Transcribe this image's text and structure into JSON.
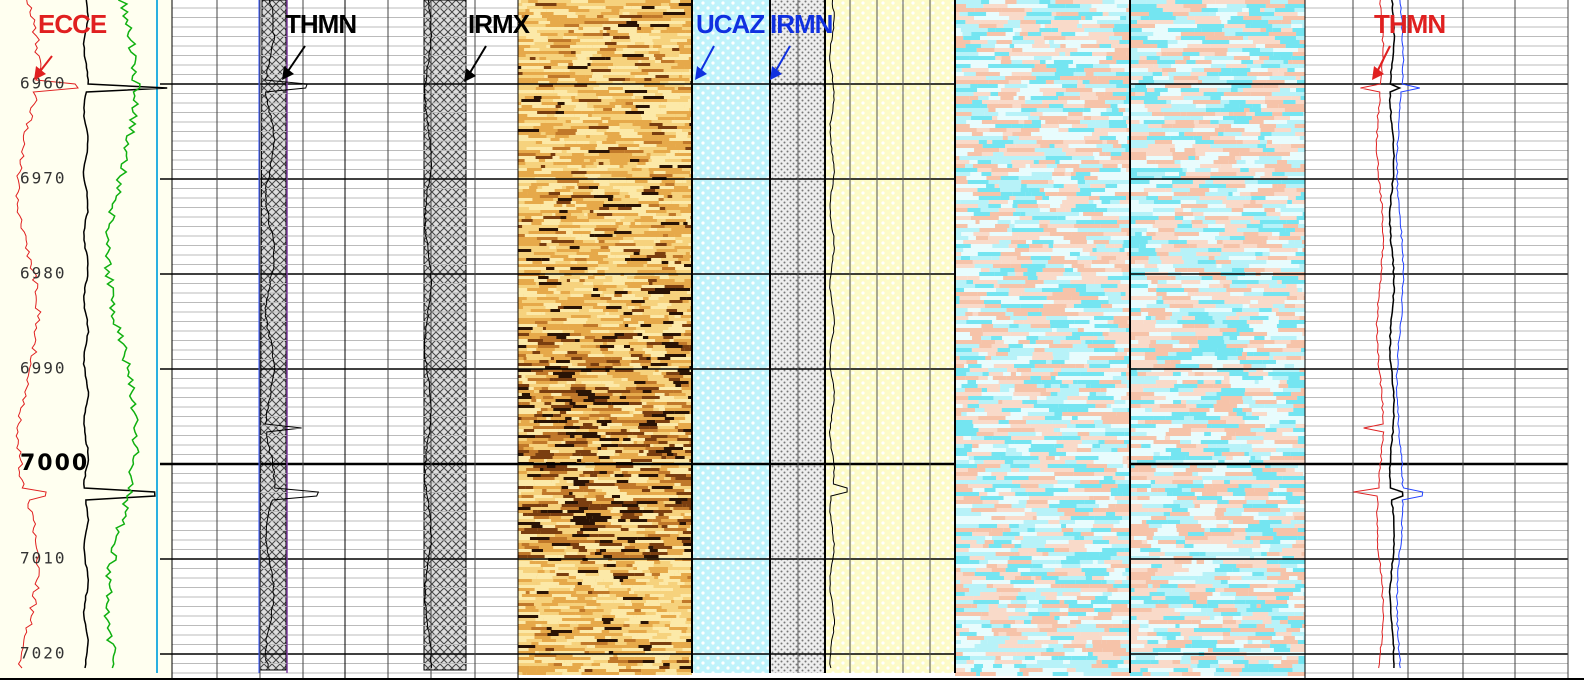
{
  "depth_labels": [
    6960,
    6970,
    6980,
    6990,
    7000,
    7010,
    7020
  ],
  "curve_labels": [
    "ECCE",
    "THMN",
    "IRMX",
    "UCAZ",
    "IRMN",
    "THMN"
  ]
}
